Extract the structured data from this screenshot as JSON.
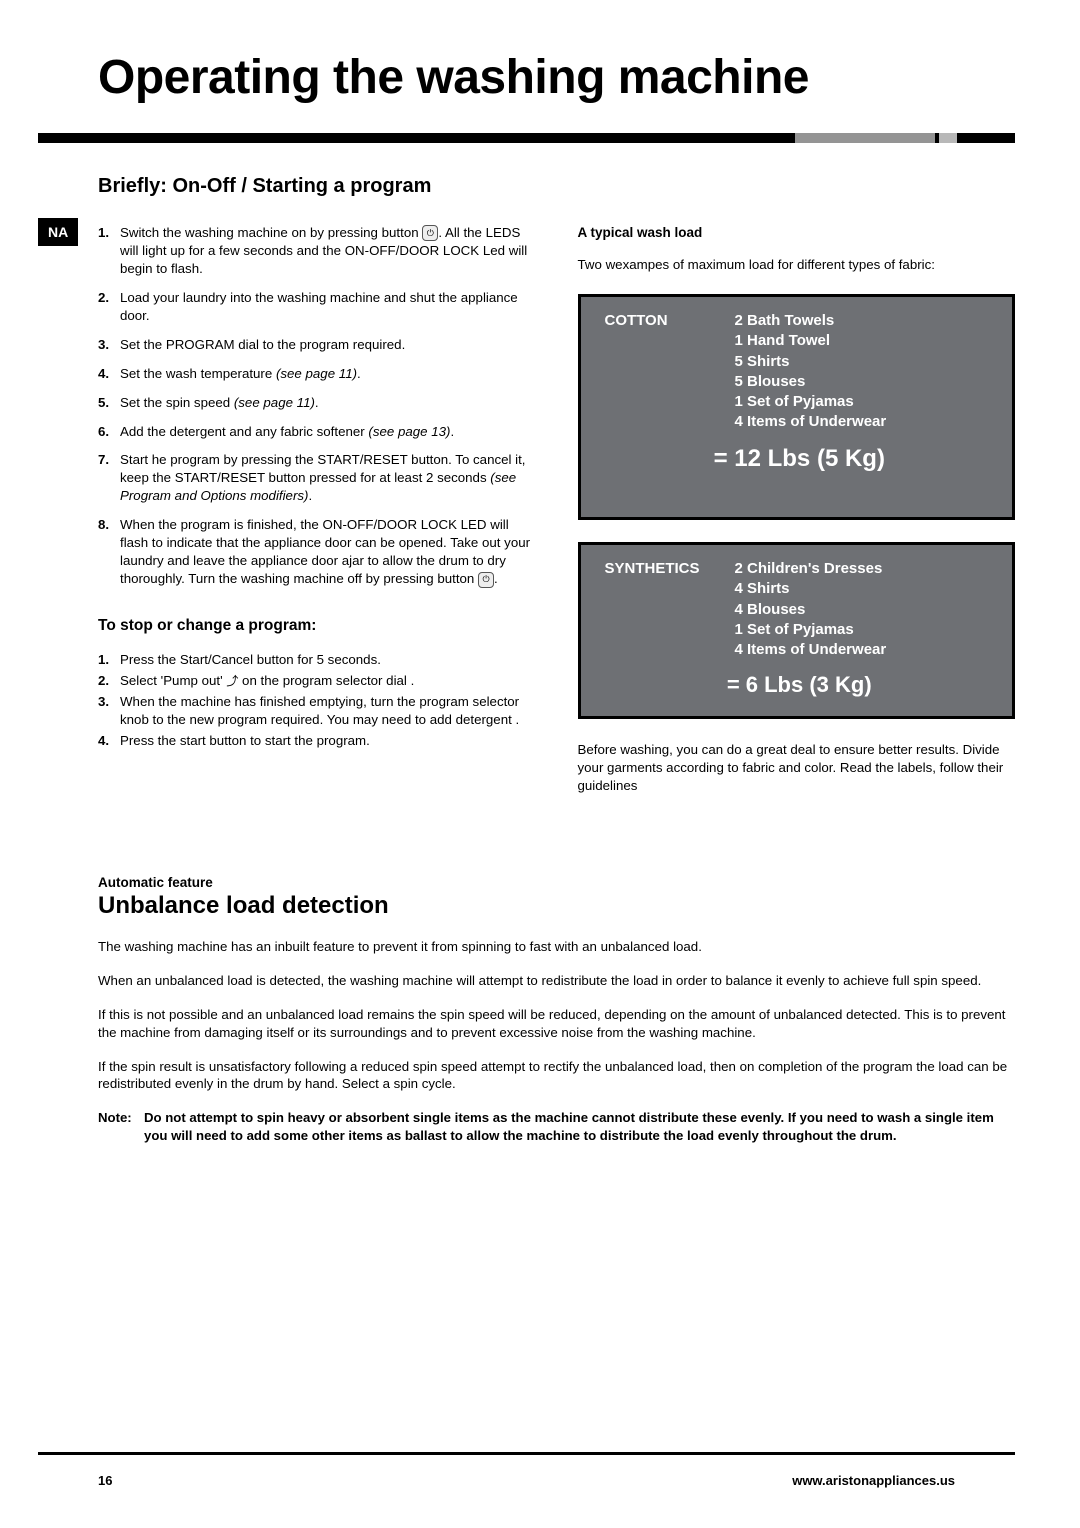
{
  "page": {
    "title": "Operating  the washing machine",
    "sidebar_tag": "NA",
    "page_number": "16",
    "site_url": "www.aristonappliances.us"
  },
  "colors": {
    "rule_black": "#000000",
    "rule_accent1": "#949494",
    "rule_accent2": "#b8b8b8",
    "load_box_bg": "#6e7074",
    "load_box_text": "#ffffff"
  },
  "briefly": {
    "title": "Briefly: On-Off / Starting a program",
    "steps": [
      {
        "n": "1.",
        "pre": "Switch the washing machine on by pressing button ",
        "post": ". All the LEDS will light up for a few seconds and the ON-OFF/DOOR LOCK Led will begin to flash.",
        "power": true
      },
      {
        "n": "2.",
        "pre": "Load your laundry into the washing machine and shut the appliance door."
      },
      {
        "n": "3.",
        "pre": "Set the PROGRAM dial to the program required."
      },
      {
        "n": "4.",
        "pre": "Set the wash temperature ",
        "italic": "(see page 11)",
        "post": "."
      },
      {
        "n": "5.",
        "pre": "Set the spin speed ",
        "italic": "(see page 11)",
        "post": "."
      },
      {
        "n": "6.",
        "pre": "Add the detergent and any fabric softener ",
        "italic": "(see page  13)",
        "post": "."
      },
      {
        "n": "7.",
        "pre": "Start he program by pressing the START/RESET button. To cancel it, keep the START/RESET button pressed for at least 2 seconds ",
        "italic": "(see Program and Options modifiers)",
        "post": "."
      },
      {
        "n": "8.",
        "pre": "When the program is finished, the ON-OFF/DOOR LOCK LED will flash to indicate that the appliance door can be opened. Take out your laundry and leave the appliance door ajar to allow the drum to dry thoroughly. Turn the washing machine off by pressing button ",
        "post": ".",
        "power": true
      }
    ]
  },
  "stop_change": {
    "title": "To stop or change a program:",
    "steps": [
      {
        "n": "1.",
        "pre": "Press the Start/Cancel button for 5 seconds."
      },
      {
        "n": "2.",
        "pre": "Select 'Pump out'  ",
        "pump": true,
        "post": " on the program selector dial ."
      },
      {
        "n": "3.",
        "pre": "When the machine has finished emptying, turn the program selector knob to the new program required. You may need to add detergent ."
      },
      {
        "n": "4.",
        "pre": "Press  the start button to start the program."
      }
    ]
  },
  "typical_load": {
    "heading": "A typical wash load",
    "intro": "Two wexampes of maximum load for different types of fabric:",
    "boxes": [
      {
        "label": "COTTON",
        "items_text": "2 Bath Towels\n 1  Hand Towel\n5 Shirts\n5 Blouses\n1 Set of Pyjamas\n 4 Items of Underwear",
        "total": "= 12 Lbs  (5 Kg)"
      },
      {
        "label": "SYNTHETICS",
        "items_text": "2 Children's Dresses\n4 Shirts\n 4 Blouses\n1 Set of Pyjamas\n4 Items of Underwear",
        "total": "= 6 Lbs (3 Kg)"
      }
    ],
    "after": "Before  washing, you can do a great deal to ensure better results. Divide your garments according to fabric and color. Read the labels, follow their guidelines"
  },
  "unbalance": {
    "kicker": "Automatic feature",
    "title": "Unbalance  load  detection",
    "paras": [
      "The washing machine has an inbuilt feature to prevent it from spinning to fast with an unbalanced load.",
      "When an unbalanced load is detected, the washing machine  will attempt to redistribute the load in order to balance it evenly to achieve full spin speed.",
      "If this is not possible  and an unbalanced load remains the spin speed will be reduced, depending on the amount of unbalanced detected. This is to prevent the machine from damaging itself or its surroundings and to prevent  excessive noise from the washing machine.",
      "If the spin result is  unsatisfactory following a reduced  spin speed attempt to rectify the unbalanced load, then on completion of the program the load can be redistributed  evenly in the drum by hand. Select  a spin cycle."
    ],
    "note_label": "Note: ",
    "note_body": "Do not attempt to spin heavy or absorbent single items as the machine cannot distribute these evenly. If you need to wash a single item you will need to add some other items as ballast to allow the machine  to distribute the load evenly throughout the drum."
  }
}
